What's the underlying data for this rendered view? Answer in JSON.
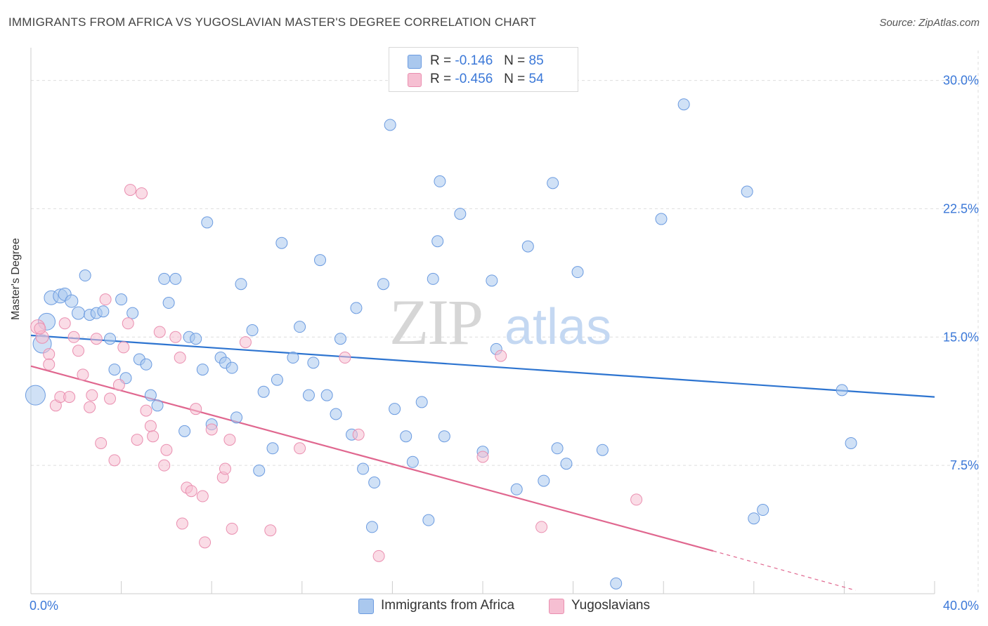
{
  "header": {
    "title": "IMMIGRANTS FROM AFRICA VS YUGOSLAVIAN MASTER'S DEGREE CORRELATION CHART",
    "source": "Source: ZipAtlas.com"
  },
  "legend": {
    "r_label": "R =",
    "n_label": "N =",
    "rows": [
      {
        "r": "-0.146",
        "n": "85"
      },
      {
        "r": "-0.456",
        "n": "54"
      }
    ]
  },
  "watermark": {
    "zip": "ZIP",
    "atlas": "atlas"
  },
  "colors": {
    "blue_fill": "#aac8ee",
    "blue_stroke": "#6b9be0",
    "blue_line": "#2d74d0",
    "pink_fill": "#f6bfd2",
    "pink_stroke": "#ea8fb0",
    "pink_line": "#e0678f",
    "axis_text": "#3b78d8",
    "grid": "#dddddd"
  },
  "chart_data": {
    "type": "scatter",
    "title": "IMMIGRANTS FROM AFRICA VS YUGOSLAVIAN MASTER'S DEGREE CORRELATION CHART",
    "xlabel": "",
    "ylabel": "Master's Degree",
    "xlim": [
      0,
      40
    ],
    "ylim": [
      0,
      31.5
    ],
    "x_tick_labels": [
      "0.0%",
      "40.0%"
    ],
    "y_ticks": [
      7.5,
      15.0,
      22.5,
      30.0
    ],
    "y_tick_labels": [
      "7.5%",
      "15.0%",
      "22.5%",
      "30.0%"
    ],
    "grid": true,
    "legend_position": "top-center",
    "series": [
      {
        "name": "Immigrants from Africa",
        "color": "#aac8ee",
        "r": -0.146,
        "n": 85,
        "trend": {
          "x": [
            0,
            40
          ],
          "y": [
            15.1,
            11.5
          ]
        },
        "points": [
          [
            0.2,
            11.6
          ],
          [
            0.5,
            14.6
          ],
          [
            0.7,
            15.9
          ],
          [
            0.9,
            17.3
          ],
          [
            1.3,
            17.4
          ],
          [
            1.5,
            17.5
          ],
          [
            1.8,
            17.1
          ],
          [
            2.1,
            16.4
          ],
          [
            2.4,
            18.6
          ],
          [
            2.6,
            16.3
          ],
          [
            2.9,
            16.4
          ],
          [
            3.2,
            16.5
          ],
          [
            3.5,
            14.9
          ],
          [
            3.7,
            13.1
          ],
          [
            4.0,
            17.2
          ],
          [
            4.2,
            12.6
          ],
          [
            4.5,
            16.4
          ],
          [
            4.8,
            13.7
          ],
          [
            5.1,
            13.4
          ],
          [
            5.3,
            11.6
          ],
          [
            5.6,
            11.0
          ],
          [
            5.9,
            18.4
          ],
          [
            6.1,
            17.0
          ],
          [
            6.4,
            18.4
          ],
          [
            6.8,
            9.5
          ],
          [
            7.0,
            15.0
          ],
          [
            7.3,
            14.9
          ],
          [
            7.6,
            13.1
          ],
          [
            7.8,
            21.7
          ],
          [
            8.0,
            9.9
          ],
          [
            8.4,
            13.8
          ],
          [
            8.6,
            13.5
          ],
          [
            8.9,
            13.2
          ],
          [
            9.1,
            10.3
          ],
          [
            9.3,
            18.1
          ],
          [
            9.8,
            15.4
          ],
          [
            10.1,
            7.2
          ],
          [
            10.3,
            11.8
          ],
          [
            10.7,
            8.5
          ],
          [
            10.9,
            12.5
          ],
          [
            11.1,
            20.5
          ],
          [
            11.6,
            13.8
          ],
          [
            11.9,
            15.6
          ],
          [
            12.3,
            11.6
          ],
          [
            12.5,
            13.5
          ],
          [
            12.8,
            19.5
          ],
          [
            13.1,
            11.6
          ],
          [
            13.5,
            10.5
          ],
          [
            13.7,
            14.9
          ],
          [
            14.2,
            9.3
          ],
          [
            14.4,
            16.7
          ],
          [
            14.7,
            7.3
          ],
          [
            15.1,
            3.9
          ],
          [
            15.2,
            6.5
          ],
          [
            15.6,
            18.1
          ],
          [
            15.9,
            27.4
          ],
          [
            16.1,
            10.8
          ],
          [
            16.6,
            9.2
          ],
          [
            16.9,
            7.7
          ],
          [
            17.3,
            11.2
          ],
          [
            17.6,
            4.3
          ],
          [
            17.8,
            18.4
          ],
          [
            18.0,
            20.6
          ],
          [
            18.1,
            24.1
          ],
          [
            18.3,
            9.2
          ],
          [
            19.0,
            22.2
          ],
          [
            20.0,
            8.3
          ],
          [
            20.4,
            18.3
          ],
          [
            20.6,
            14.3
          ],
          [
            21.5,
            6.1
          ],
          [
            22.0,
            20.3
          ],
          [
            22.7,
            6.6
          ],
          [
            23.1,
            24.0
          ],
          [
            23.3,
            8.5
          ],
          [
            23.7,
            7.6
          ],
          [
            24.2,
            18.8
          ],
          [
            25.3,
            8.4
          ],
          [
            25.9,
            0.6
          ],
          [
            27.9,
            21.9
          ],
          [
            28.9,
            28.6
          ],
          [
            31.7,
            23.5
          ],
          [
            32.0,
            4.4
          ],
          [
            32.4,
            4.9
          ],
          [
            35.9,
            11.9
          ],
          [
            36.3,
            8.8
          ]
        ],
        "radii": [
          14,
          13,
          12,
          10,
          10,
          9,
          9,
          9,
          8,
          8,
          8,
          8,
          8,
          8,
          8,
          8,
          8,
          8,
          8,
          8,
          8,
          8,
          8,
          8,
          8,
          8,
          8,
          8,
          8,
          8,
          8,
          8,
          8,
          8,
          8,
          8,
          8,
          8,
          8,
          8,
          8,
          8,
          8,
          8,
          8,
          8,
          8,
          8,
          8,
          8,
          8,
          8,
          8,
          8,
          8,
          8,
          8,
          8,
          8,
          8,
          8,
          8,
          8,
          8,
          8,
          8,
          8,
          8,
          8,
          8,
          8,
          8,
          8,
          8,
          8,
          8,
          8,
          8,
          8,
          8,
          8,
          8,
          8,
          8,
          8
        ]
      },
      {
        "name": "Yugoslavians",
        "color": "#f6bfd2",
        "r": -0.456,
        "n": 54,
        "trend": {
          "x": [
            0,
            30.2
          ],
          "y": [
            13.3,
            2.5
          ]
        },
        "trend_dashed": {
          "x": [
            30.2,
            36.5
          ],
          "y": [
            2.5,
            0.2
          ]
        },
        "points": [
          [
            0.3,
            15.6
          ],
          [
            0.5,
            15.0
          ],
          [
            0.8,
            14.0
          ],
          [
            0.8,
            13.4
          ],
          [
            1.1,
            11.0
          ],
          [
            1.3,
            11.5
          ],
          [
            1.5,
            15.8
          ],
          [
            1.7,
            11.5
          ],
          [
            1.9,
            15.0
          ],
          [
            2.1,
            14.2
          ],
          [
            2.3,
            12.8
          ],
          [
            2.6,
            10.9
          ],
          [
            2.7,
            11.6
          ],
          [
            2.9,
            14.9
          ],
          [
            3.1,
            8.8
          ],
          [
            3.3,
            17.2
          ],
          [
            3.5,
            11.4
          ],
          [
            3.7,
            7.8
          ],
          [
            3.9,
            12.2
          ],
          [
            4.1,
            14.4
          ],
          [
            4.3,
            15.8
          ],
          [
            4.4,
            23.6
          ],
          [
            4.7,
            9.0
          ],
          [
            4.9,
            23.4
          ],
          [
            5.1,
            10.7
          ],
          [
            5.3,
            9.8
          ],
          [
            5.4,
            9.2
          ],
          [
            5.7,
            15.3
          ],
          [
            5.9,
            7.5
          ],
          [
            6.0,
            8.4
          ],
          [
            6.4,
            15.0
          ],
          [
            6.6,
            13.8
          ],
          [
            6.7,
            4.1
          ],
          [
            6.9,
            6.2
          ],
          [
            7.1,
            6.0
          ],
          [
            7.3,
            10.8
          ],
          [
            7.6,
            5.7
          ],
          [
            7.7,
            3.0
          ],
          [
            8.0,
            9.6
          ],
          [
            8.5,
            6.8
          ],
          [
            8.6,
            7.3
          ],
          [
            8.8,
            9.0
          ],
          [
            8.9,
            3.8
          ],
          [
            9.5,
            14.7
          ],
          [
            10.6,
            3.7
          ],
          [
            11.9,
            8.5
          ],
          [
            13.9,
            13.8
          ],
          [
            14.5,
            9.3
          ],
          [
            15.4,
            2.2
          ],
          [
            20.0,
            8.0
          ],
          [
            20.8,
            13.9
          ],
          [
            22.6,
            3.9
          ],
          [
            26.8,
            5.5
          ],
          [
            0.4,
            15.5
          ]
        ],
        "radii": [
          10,
          9,
          8,
          8,
          8,
          8,
          8,
          8,
          8,
          8,
          8,
          8,
          8,
          8,
          8,
          8,
          8,
          8,
          8,
          8,
          8,
          8,
          8,
          8,
          8,
          8,
          8,
          8,
          8,
          8,
          8,
          8,
          8,
          8,
          8,
          8,
          8,
          8,
          8,
          8,
          8,
          8,
          8,
          8,
          8,
          8,
          8,
          8,
          8,
          8,
          8,
          8,
          8,
          8
        ]
      }
    ]
  }
}
